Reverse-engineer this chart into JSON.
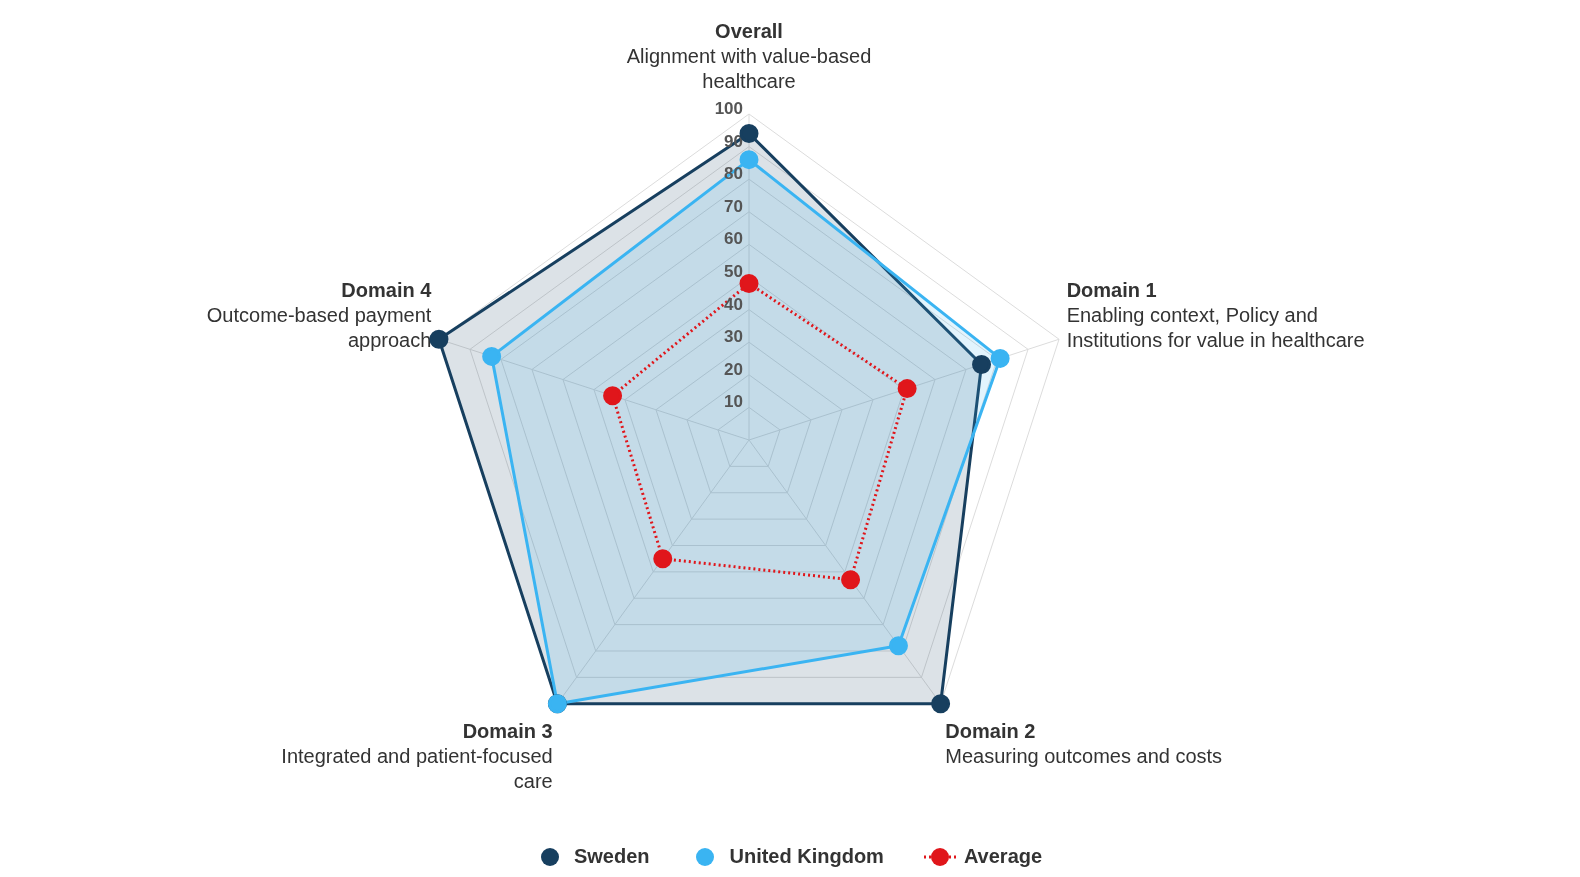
{
  "chart_data": {
    "type": "radar",
    "categories": [
      "Overall",
      "Domain 1",
      "Domain 2",
      "Domain 3",
      "Domain 4"
    ],
    "annotations": [
      "Alignment with value-based healthcare",
      "Enabling context, Policy and Institutions for value in healthcare",
      "Measuring outcomes and costs",
      "Integrated and patient-focused care",
      "Outcome-based payment approach"
    ],
    "series": [
      {
        "name": "Sweden",
        "color": "#173f5f",
        "values": [
          94,
          75,
          100,
          100,
          100
        ]
      },
      {
        "name": "United Kingdom",
        "color": "#3ab4f2",
        "values": [
          86,
          81,
          78,
          100,
          83
        ]
      },
      {
        "name": "Average",
        "color": "#e0161b",
        "line_style": "dotted",
        "values": [
          48,
          51,
          53,
          45,
          44
        ]
      }
    ],
    "ylim": [
      0,
      100
    ],
    "yticks": [
      10,
      20,
      30,
      40,
      50,
      60,
      70,
      80,
      90,
      100
    ],
    "grid": true,
    "legend": "bottom",
    "marker": "circle"
  }
}
